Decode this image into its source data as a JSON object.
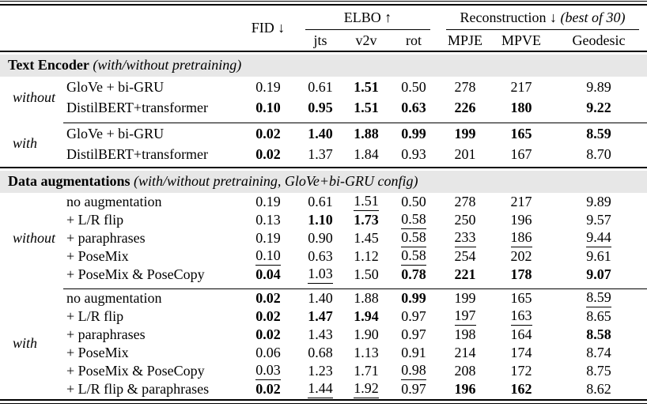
{
  "table": {
    "header": {
      "fid": "FID ↓",
      "elbo": "ELBO ↑",
      "recon": "Reconstruction ↓",
      "recon_note": " (best of 30)",
      "sub_headers": [
        "jts",
        "v2v",
        "rot",
        "MPJE",
        "MPVE",
        "Geodesic"
      ]
    },
    "sections": [
      {
        "title": "Text Encoder",
        "note": "(with/without pretraining)",
        "groups": [
          {
            "label": "without",
            "rows": [
              {
                "name": "GloVe + bi-GRU",
                "values": [
                  [
                    "0.19",
                    "n"
                  ],
                  [
                    "0.61",
                    "n"
                  ],
                  [
                    "1.51",
                    "b"
                  ],
                  [
                    "0.50",
                    "n"
                  ],
                  [
                    "278",
                    "n"
                  ],
                  [
                    "217",
                    "n"
                  ],
                  [
                    "9.89",
                    "n"
                  ]
                ]
              },
              {
                "name": "DistilBERT+transformer",
                "values": [
                  [
                    "0.10",
                    "b"
                  ],
                  [
                    "0.95",
                    "b"
                  ],
                  [
                    "1.51",
                    "b"
                  ],
                  [
                    "0.63",
                    "b"
                  ],
                  [
                    "226",
                    "b"
                  ],
                  [
                    "180",
                    "b"
                  ],
                  [
                    "9.22",
                    "b"
                  ]
                ]
              }
            ]
          },
          {
            "label": "with",
            "rows": [
              {
                "name": "GloVe + bi-GRU",
                "values": [
                  [
                    "0.02",
                    "b"
                  ],
                  [
                    "1.40",
                    "b"
                  ],
                  [
                    "1.88",
                    "b"
                  ],
                  [
                    "0.99",
                    "b"
                  ],
                  [
                    "199",
                    "b"
                  ],
                  [
                    "165",
                    "b"
                  ],
                  [
                    "8.59",
                    "b"
                  ]
                ]
              },
              {
                "name": "DistilBERT+transformer",
                "values": [
                  [
                    "0.02",
                    "b"
                  ],
                  [
                    "1.37",
                    "n"
                  ],
                  [
                    "1.84",
                    "n"
                  ],
                  [
                    "0.93",
                    "n"
                  ],
                  [
                    "201",
                    "n"
                  ],
                  [
                    "167",
                    "n"
                  ],
                  [
                    "8.70",
                    "n"
                  ]
                ]
              }
            ]
          }
        ]
      },
      {
        "title": "Data augmentations",
        "note": "(with/without pretraining, GloVe+bi-GRU config)",
        "groups": [
          {
            "label": "without",
            "rows": [
              {
                "name": "no augmentation",
                "values": [
                  [
                    "0.19",
                    "n"
                  ],
                  [
                    "0.61",
                    "n"
                  ],
                  [
                    "1.51",
                    "u"
                  ],
                  [
                    "0.50",
                    "n"
                  ],
                  [
                    "278",
                    "n"
                  ],
                  [
                    "217",
                    "n"
                  ],
                  [
                    "9.89",
                    "n"
                  ]
                ]
              },
              {
                "name": "+ L/R flip",
                "values": [
                  [
                    "0.13",
                    "n"
                  ],
                  [
                    "1.10",
                    "b"
                  ],
                  [
                    "1.73",
                    "b"
                  ],
                  [
                    "0.58",
                    "u"
                  ],
                  [
                    "250",
                    "n"
                  ],
                  [
                    "196",
                    "n"
                  ],
                  [
                    "9.57",
                    "n"
                  ]
                ]
              },
              {
                "name": "+ paraphrases",
                "values": [
                  [
                    "0.19",
                    "n"
                  ],
                  [
                    "0.90",
                    "n"
                  ],
                  [
                    "1.45",
                    "n"
                  ],
                  [
                    "0.58",
                    "u"
                  ],
                  [
                    "233",
                    "u"
                  ],
                  [
                    "186",
                    "u"
                  ],
                  [
                    "9.44",
                    "u"
                  ]
                ]
              },
              {
                "name": "+ PoseMix",
                "values": [
                  [
                    "0.10",
                    "u"
                  ],
                  [
                    "0.63",
                    "n"
                  ],
                  [
                    "1.12",
                    "n"
                  ],
                  [
                    "0.58",
                    "u"
                  ],
                  [
                    "254",
                    "n"
                  ],
                  [
                    "202",
                    "n"
                  ],
                  [
                    "9.61",
                    "n"
                  ]
                ]
              },
              {
                "name": "+ PoseMix & PoseCopy",
                "values": [
                  [
                    "0.04",
                    "b"
                  ],
                  [
                    "1.03",
                    "u"
                  ],
                  [
                    "1.50",
                    "n"
                  ],
                  [
                    "0.78",
                    "b"
                  ],
                  [
                    "221",
                    "b"
                  ],
                  [
                    "178",
                    "b"
                  ],
                  [
                    "9.07",
                    "b"
                  ]
                ]
              }
            ]
          },
          {
            "label": "with",
            "rows": [
              {
                "name": "no augmentation",
                "values": [
                  [
                    "0.02",
                    "b"
                  ],
                  [
                    "1.40",
                    "n"
                  ],
                  [
                    "1.88",
                    "n"
                  ],
                  [
                    "0.99",
                    "b"
                  ],
                  [
                    "199",
                    "n"
                  ],
                  [
                    "165",
                    "n"
                  ],
                  [
                    "8.59",
                    "u"
                  ]
                ]
              },
              {
                "name": "+ L/R flip",
                "values": [
                  [
                    "0.02",
                    "b"
                  ],
                  [
                    "1.47",
                    "b"
                  ],
                  [
                    "1.94",
                    "b"
                  ],
                  [
                    "0.97",
                    "n"
                  ],
                  [
                    "197",
                    "u"
                  ],
                  [
                    "163",
                    "u"
                  ],
                  [
                    "8.65",
                    "n"
                  ]
                ]
              },
              {
                "name": "+ paraphrases",
                "values": [
                  [
                    "0.02",
                    "b"
                  ],
                  [
                    "1.43",
                    "n"
                  ],
                  [
                    "1.90",
                    "n"
                  ],
                  [
                    "0.97",
                    "n"
                  ],
                  [
                    "198",
                    "n"
                  ],
                  [
                    "164",
                    "n"
                  ],
                  [
                    "8.58",
                    "b"
                  ]
                ]
              },
              {
                "name": "+ PoseMix",
                "values": [
                  [
                    "0.06",
                    "n"
                  ],
                  [
                    "0.68",
                    "n"
                  ],
                  [
                    "1.13",
                    "n"
                  ],
                  [
                    "0.91",
                    "n"
                  ],
                  [
                    "214",
                    "n"
                  ],
                  [
                    "174",
                    "n"
                  ],
                  [
                    "8.74",
                    "n"
                  ]
                ]
              },
              {
                "name": "+ PoseMix & PoseCopy",
                "values": [
                  [
                    "0.03",
                    "u"
                  ],
                  [
                    "1.23",
                    "n"
                  ],
                  [
                    "1.71",
                    "n"
                  ],
                  [
                    "0.98",
                    "u"
                  ],
                  [
                    "208",
                    "n"
                  ],
                  [
                    "172",
                    "n"
                  ],
                  [
                    "8.75",
                    "n"
                  ]
                ]
              },
              {
                "name": "+ L/R flip & paraphrases",
                "values": [
                  [
                    "0.02",
                    "b"
                  ],
                  [
                    "1.44",
                    "u"
                  ],
                  [
                    "1.92",
                    "u"
                  ],
                  [
                    "0.97",
                    "n"
                  ],
                  [
                    "196",
                    "b"
                  ],
                  [
                    "162",
                    "b"
                  ],
                  [
                    "8.62",
                    "n"
                  ]
                ]
              }
            ]
          }
        ]
      }
    ],
    "colors": {
      "section_band": "#e7e7e7",
      "rule": "#000000",
      "text": "#000000",
      "background": "#ffffff"
    },
    "value_style_legend": {
      "b": "bold = best",
      "u": "underline = second best",
      "n": "normal"
    }
  }
}
